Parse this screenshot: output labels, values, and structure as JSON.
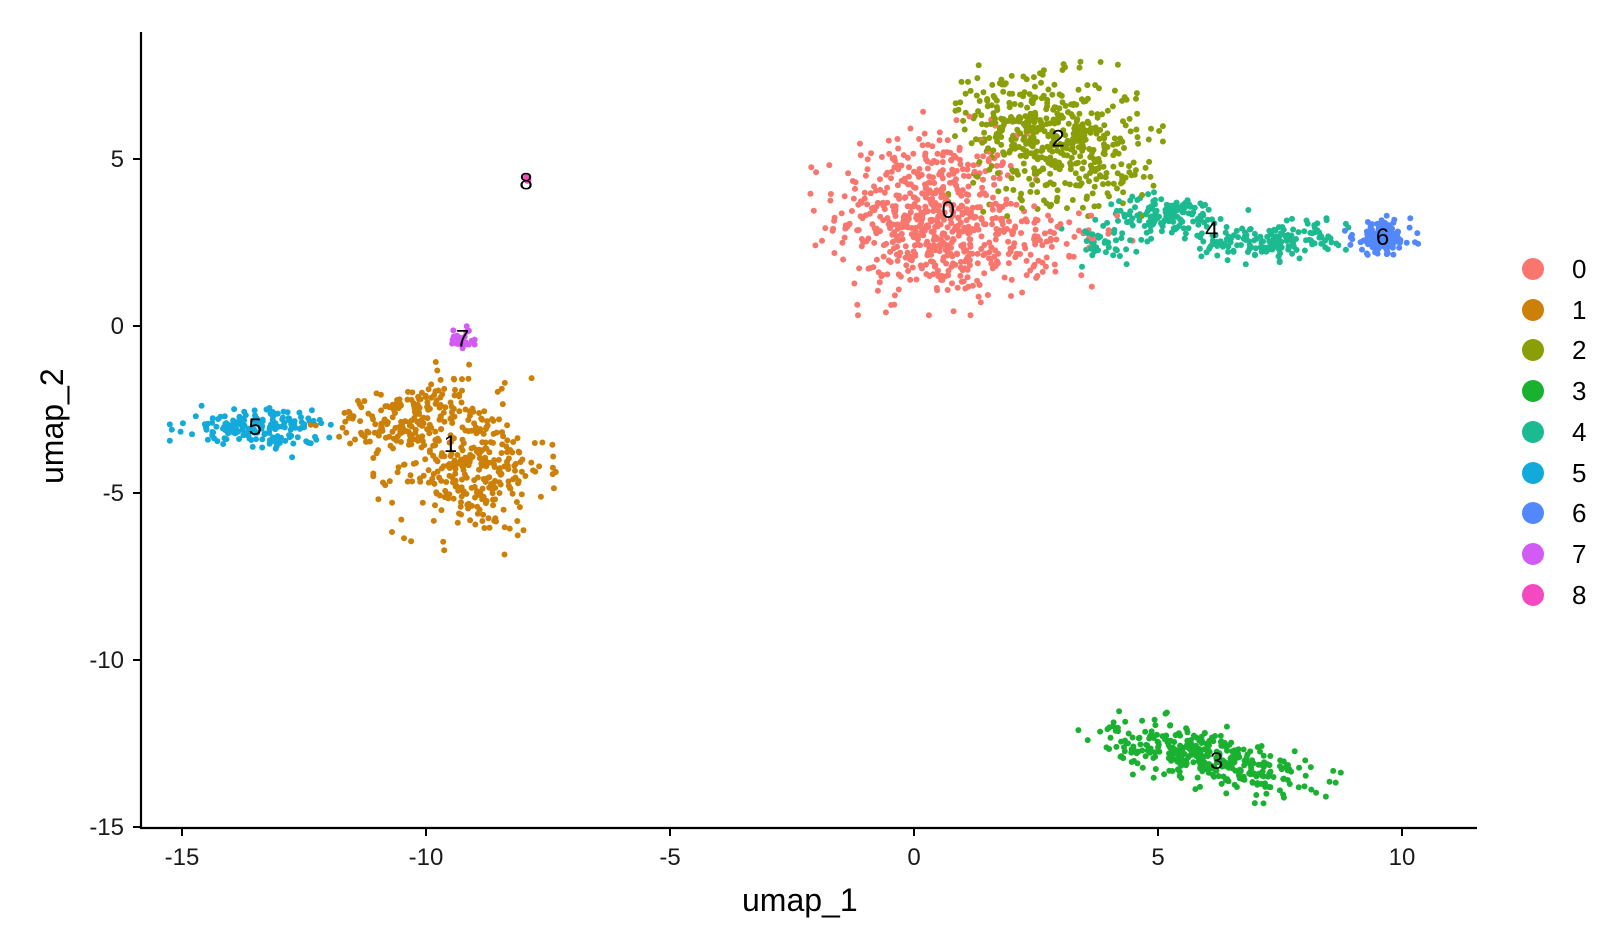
{
  "chart_data": {
    "type": "scatter",
    "title": "",
    "xlabel": "umap_1",
    "ylabel": "umap_2",
    "xlim": [
      -15.8,
      11.5
    ],
    "ylim": [
      -15,
      8.8
    ],
    "grid": false,
    "legend_position": "right",
    "x_ticks": [
      -15,
      -10,
      -5,
      0,
      5,
      10
    ],
    "y_ticks": [
      -15,
      -10,
      -5,
      0,
      5
    ],
    "series": [
      {
        "name": "0",
        "color": "#F8766D",
        "label_pos": [
          0.7,
          3.5
        ],
        "blobs": [
          [
            0.3,
            3.4,
            1.1,
            1.4,
            520
          ],
          [
            1.2,
            2.2,
            0.9,
            0.8,
            120
          ],
          [
            2.6,
            2.5,
            0.9,
            0.6,
            60
          ]
        ]
      },
      {
        "name": "1",
        "color": "#CD8008",
        "label_pos": [
          -9.5,
          -3.5
        ],
        "blobs": [
          [
            -9.1,
            -4.2,
            0.9,
            1.2,
            330
          ],
          [
            -10.6,
            -2.9,
            0.8,
            0.5,
            120
          ],
          [
            -9.6,
            -2.0,
            0.4,
            0.5,
            40
          ]
        ]
      },
      {
        "name": "2",
        "color": "#8A9E07",
        "label_pos": [
          2.95,
          5.65
        ],
        "blobs": [
          [
            2.9,
            5.6,
            1.0,
            1.05,
            420
          ],
          [
            1.8,
            6.6,
            0.6,
            0.6,
            60
          ],
          [
            4.0,
            4.5,
            0.5,
            0.5,
            40
          ]
        ]
      },
      {
        "name": "3",
        "color": "#1AB131",
        "label_pos": [
          6.2,
          -13.0
        ],
        "blobs": [
          [
            6.0,
            -12.9,
            1.25,
            0.45,
            360,
            -0.33
          ]
        ]
      },
      {
        "name": "4",
        "color": "#1BBA90",
        "label_pos": [
          6.1,
          2.9
        ],
        "blobs": [
          [
            5.2,
            3.3,
            0.75,
            0.35,
            150
          ],
          [
            7.2,
            2.5,
            0.75,
            0.3,
            140
          ],
          [
            3.8,
            2.4,
            0.6,
            0.4,
            40
          ],
          [
            8.3,
            2.8,
            0.3,
            0.3,
            20
          ]
        ]
      },
      {
        "name": "5",
        "color": "#12A9DB",
        "label_pos": [
          -13.5,
          -3.0
        ],
        "blobs": [
          [
            -13.6,
            -3.0,
            0.75,
            0.3,
            140
          ],
          [
            -12.9,
            -3.2,
            0.35,
            0.35,
            40
          ]
        ]
      },
      {
        "name": "6",
        "color": "#5388FC",
        "label_pos": [
          9.6,
          2.7
        ],
        "blobs": [
          [
            9.6,
            2.65,
            0.35,
            0.3,
            150
          ]
        ]
      },
      {
        "name": "7",
        "color": "#D25AF5",
        "label_pos": [
          -9.25,
          -0.35
        ],
        "blobs": [
          [
            -9.25,
            -0.4,
            0.18,
            0.15,
            30,
            0.7
          ]
        ]
      },
      {
        "name": "8",
        "color": "#F449C1",
        "label_pos": [
          -7.95,
          4.35
        ],
        "blobs": [
          [
            -7.95,
            4.38,
            0.05,
            0.05,
            5
          ]
        ]
      }
    ]
  },
  "axes": {
    "x_title": "umap_1",
    "y_title": "umap_2",
    "x_tick_labels": [
      "-15",
      "-10",
      "-5",
      "0",
      "5",
      "10"
    ],
    "y_tick_labels": [
      "5",
      "0",
      "-5",
      "-10",
      "-15"
    ]
  },
  "legend": {
    "items": [
      {
        "label": "0",
        "color": "#F8766D"
      },
      {
        "label": "1",
        "color": "#CD8008"
      },
      {
        "label": "2",
        "color": "#8A9E07"
      },
      {
        "label": "3",
        "color": "#1AB131"
      },
      {
        "label": "4",
        "color": "#1BBA90"
      },
      {
        "label": "5",
        "color": "#12A9DB"
      },
      {
        "label": "6",
        "color": "#5388FC"
      },
      {
        "label": "7",
        "color": "#D25AF5"
      },
      {
        "label": "8",
        "color": "#F449C1"
      }
    ]
  }
}
